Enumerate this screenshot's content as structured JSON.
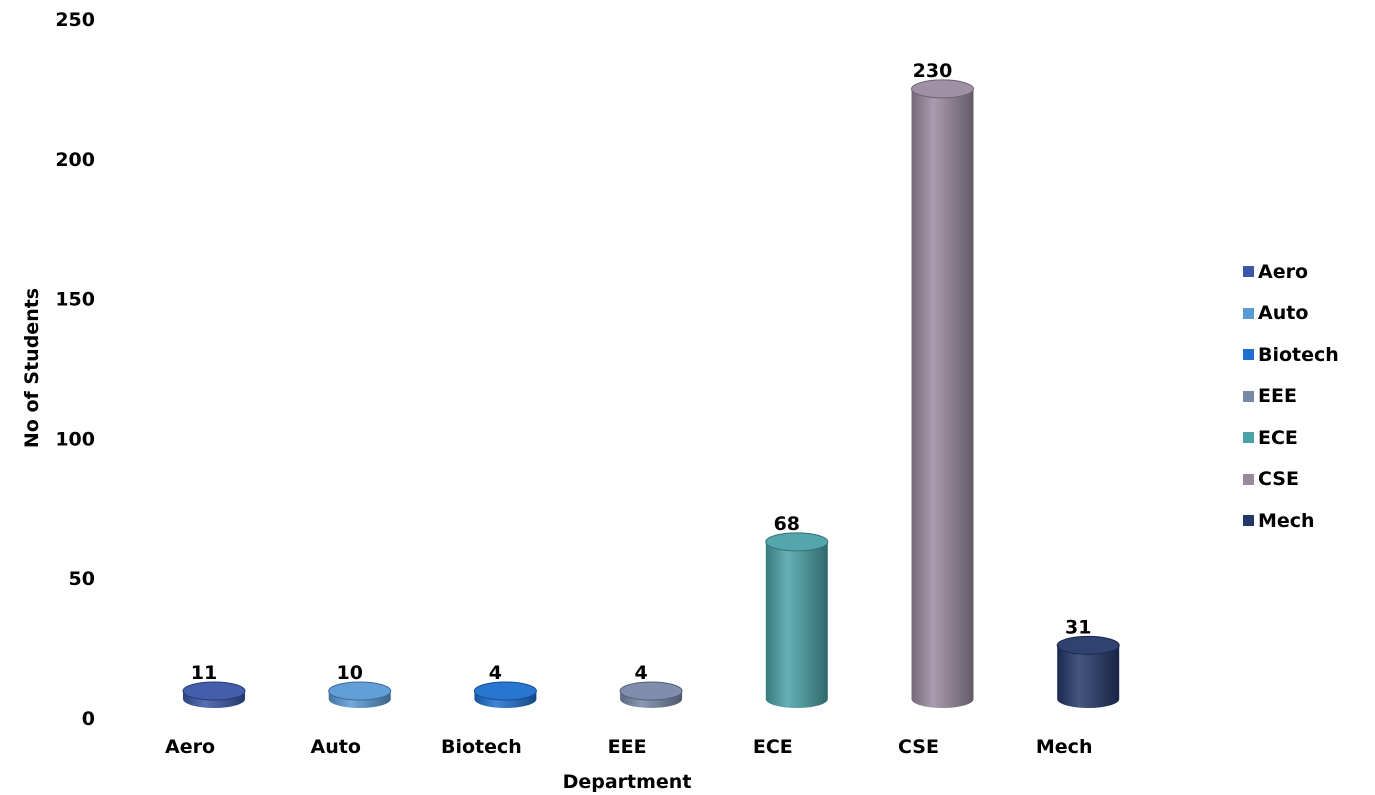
{
  "chart_data": {
    "type": "bar",
    "style": "3d-cylinder",
    "title": "",
    "xlabel": "Department",
    "ylabel": "No of Students",
    "ylim": [
      0,
      250
    ],
    "yticks": [
      "0",
      "50",
      "100",
      "150",
      "200",
      "250"
    ],
    "categories": [
      "Aero",
      "Auto",
      "Biotech",
      "EEE",
      "ECE",
      "CSE",
      "Mech"
    ],
    "values": [
      11,
      10,
      4,
      4,
      68,
      230,
      31
    ],
    "data_labels": [
      "11",
      "10",
      "4",
      "4",
      "68",
      "230",
      "31"
    ],
    "colors": [
      "#3b56a8",
      "#5a9ad6",
      "#1e6fd0",
      "#7888a8",
      "#4aa2a8",
      "#9a8aa0",
      "#243868"
    ],
    "grid": false,
    "legend_position": "right",
    "legend": [
      "Aero",
      "Auto",
      "Biotech",
      "EEE",
      "ECE",
      "CSE",
      "Mech"
    ]
  }
}
